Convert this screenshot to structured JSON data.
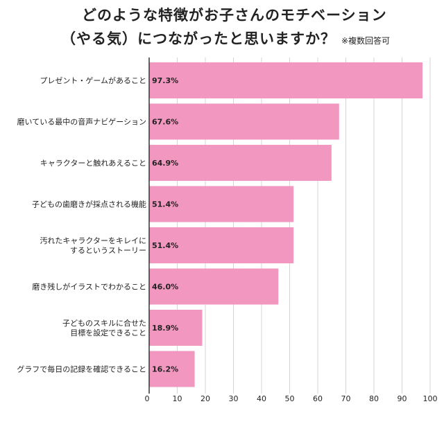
{
  "title": {
    "line1": "どのような特徴がお子さんのモチベーション",
    "line2": "（やる気）につながったと思いますか？",
    "note": "※複数回答可"
  },
  "colors": {
    "bar": "#f298c0",
    "grid": "#d4d4d4",
    "axis": "#333333",
    "text": "#222222"
  },
  "chart_data": {
    "type": "bar",
    "orientation": "horizontal",
    "categories": [
      [
        "プレゼント・ゲームがあること"
      ],
      [
        "磨いている最中の音声ナビゲーション"
      ],
      [
        "キャラクターと触れあえること"
      ],
      [
        "子どもの歯磨きが採点される機能"
      ],
      [
        "汚れたキャラクターをキレイに",
        "するというストーリー"
      ],
      [
        "磨き残しがイラストでわかること"
      ],
      [
        "子どものスキルに合せた",
        "目標を設定できること"
      ],
      [
        "グラフで毎日の記録を確認できること"
      ]
    ],
    "values": [
      97.3,
      67.6,
      64.9,
      51.4,
      51.4,
      46.0,
      18.9,
      16.2
    ],
    "value_labels": [
      "97.3%",
      "67.6%",
      "64.9%",
      "51.4%",
      "51.4%",
      "46.0%",
      "18.9%",
      "16.2%"
    ],
    "xlim": [
      0,
      100
    ],
    "xticks": [
      0,
      10,
      20,
      30,
      40,
      50,
      60,
      70,
      80,
      90,
      100
    ],
    "grid": true,
    "legend": "none"
  }
}
